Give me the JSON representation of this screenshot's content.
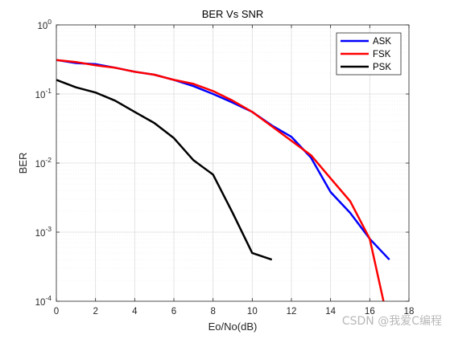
{
  "chart_data": {
    "type": "line",
    "title": "BER Vs SNR",
    "xlabel": "Eo/No(dB)",
    "ylabel": "BER",
    "xlim": [
      0,
      18
    ],
    "ylim": [
      0.0001,
      1
    ],
    "yscale": "log",
    "grid": true,
    "minor_grid": true,
    "legend_position": "top-right",
    "x_ticks": [
      "0",
      "2",
      "4",
      "6",
      "8",
      "10",
      "12",
      "14",
      "16",
      "18"
    ],
    "y_ticks": [
      {
        "base": "10",
        "exp": "-4",
        "value": 0.0001
      },
      {
        "base": "10",
        "exp": "-3",
        "value": 0.001
      },
      {
        "base": "10",
        "exp": "-2",
        "value": 0.01
      },
      {
        "base": "10",
        "exp": "-1",
        "value": 0.1
      },
      {
        "base": "10",
        "exp": "0",
        "value": 1
      }
    ],
    "series": [
      {
        "name": "ASK",
        "color": "#0000ff",
        "x": [
          0,
          1,
          2,
          3,
          4,
          5,
          6,
          7,
          8,
          9,
          10,
          11,
          12,
          13,
          14,
          15,
          16,
          17
        ],
        "y": [
          0.31,
          0.28,
          0.27,
          0.24,
          0.21,
          0.19,
          0.16,
          0.13,
          0.1,
          0.075,
          0.055,
          0.035,
          0.024,
          0.012,
          0.0038,
          0.0019,
          0.0008,
          0.0004
        ]
      },
      {
        "name": "FSK",
        "color": "#ff0000",
        "x": [
          0,
          1,
          2,
          3,
          4,
          5,
          6,
          7,
          8,
          9,
          10,
          11,
          12,
          13,
          14,
          15,
          16,
          16.7
        ],
        "y": [
          0.31,
          0.29,
          0.26,
          0.24,
          0.21,
          0.19,
          0.16,
          0.14,
          0.11,
          0.08,
          0.055,
          0.034,
          0.021,
          0.013,
          0.006,
          0.0028,
          0.0008,
          0.0001
        ]
      },
      {
        "name": "PSK",
        "color": "#000000",
        "x": [
          0,
          1,
          2,
          3,
          4,
          5,
          6,
          7,
          8,
          9,
          10,
          11
        ],
        "y": [
          0.16,
          0.125,
          0.105,
          0.08,
          0.055,
          0.038,
          0.023,
          0.011,
          0.0068,
          0.0019,
          0.0005,
          0.0004
        ]
      }
    ]
  },
  "watermark": "CSDN @我爱C编程"
}
